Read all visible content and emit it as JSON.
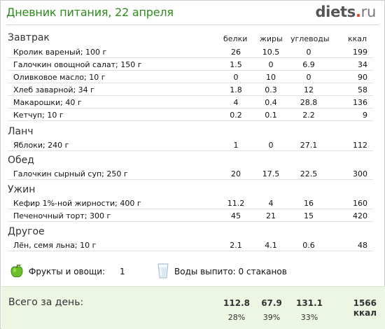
{
  "header": {
    "title": "Дневник питания, 22 апреля",
    "brand_main": "diets",
    "brand_dot": ".",
    "brand_tld": "ru"
  },
  "columns": {
    "protein": "белки",
    "fat": "жиры",
    "carbs": "углеводы",
    "kcal": "ккал"
  },
  "sections": [
    {
      "name": "Завтрак",
      "items": [
        {
          "name": "Кролик вареный; 100 г",
          "protein": "26",
          "fat": "10.5",
          "carbs": "0",
          "kcal": "199"
        },
        {
          "name": "Галочкин овощной салат; 150 г",
          "protein": "1.5",
          "fat": "0",
          "carbs": "6.9",
          "kcal": "34"
        },
        {
          "name": "Оливковое масло; 10 г",
          "protein": "0",
          "fat": "10",
          "carbs": "0",
          "kcal": "90"
        },
        {
          "name": "Хлеб заварной; 34 г",
          "protein": "1.8",
          "fat": "0.3",
          "carbs": "12",
          "kcal": "58"
        },
        {
          "name": "Макарошки; 40 г",
          "protein": "4",
          "fat": "0.4",
          "carbs": "28.8",
          "kcal": "136"
        },
        {
          "name": "Кетчуп; 10 г",
          "protein": "0.2",
          "fat": "0.1",
          "carbs": "2.2",
          "kcal": "9"
        }
      ]
    },
    {
      "name": "Ланч",
      "items": [
        {
          "name": "Яблоки; 240 г",
          "protein": "1",
          "fat": "0",
          "carbs": "27.1",
          "kcal": "112"
        }
      ]
    },
    {
      "name": "Обед",
      "items": [
        {
          "name": "Галочкин сырный суп; 250 г",
          "protein": "20",
          "fat": "17.5",
          "carbs": "22.5",
          "kcal": "300"
        }
      ]
    },
    {
      "name": "Ужин",
      "items": [
        {
          "name": "Кефир 1%-ной жирности; 400 г",
          "protein": "11.2",
          "fat": "4",
          "carbs": "16",
          "kcal": "160"
        },
        {
          "name": "Печеночный торт; 300 г",
          "protein": "45",
          "fat": "21",
          "carbs": "15",
          "kcal": "420"
        }
      ]
    },
    {
      "name": "Другое",
      "items": [
        {
          "name": "Лён, семя льна; 10 г",
          "protein": "2.1",
          "fat": "4.1",
          "carbs": "0.6",
          "kcal": "48"
        }
      ]
    }
  ],
  "extras": {
    "fruit_label": "Фрукты и овощи:",
    "fruit_count": "1",
    "water_label": "Воды выпито: 0 стаканов"
  },
  "total": {
    "label": "Всего за день:",
    "protein": "112.8",
    "fat": "67.9",
    "carbs": "131.1",
    "kcal": "1566 ккал",
    "protein_pct": "28%",
    "fat_pct": "39%",
    "carbs_pct": "33%"
  },
  "colors": {
    "title_green": "#2f8a1d",
    "brand_dot_red": "#e8412a",
    "total_bg": "#ecf6e3"
  }
}
